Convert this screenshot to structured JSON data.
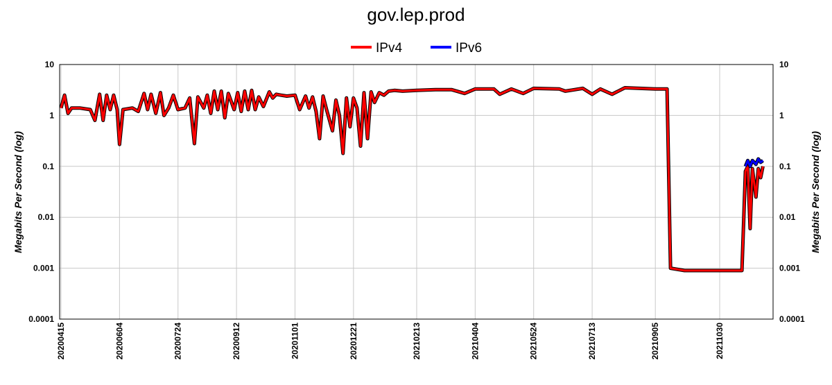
{
  "chart_data": {
    "type": "line",
    "title": "gov.lep.prod",
    "ylabel": "Megabits Per Second (log)",
    "xlabel": "",
    "yscale": "log",
    "ylim": [
      0.0001,
      10
    ],
    "yticks": [
      "10",
      "1",
      "0.1",
      "0.01",
      "0.001",
      "0.0001"
    ],
    "xticks": [
      "20200415",
      "20200604",
      "20200724",
      "20200912",
      "20201101",
      "20201221",
      "20210213",
      "20210404",
      "20210524",
      "20210713",
      "20210905",
      "20211030"
    ],
    "grid": true,
    "legend_position": "top-center",
    "series": [
      {
        "name": "IPv4",
        "color": "#ff0000",
        "points": [
          [
            "20200415",
            1.4
          ],
          [
            "20200418",
            2.5
          ],
          [
            "20200421",
            1.1
          ],
          [
            "20200424",
            1.4
          ],
          [
            "20200501",
            1.4
          ],
          [
            "20200510",
            1.3
          ],
          [
            "20200514",
            0.8
          ],
          [
            "20200518",
            2.6
          ],
          [
            "20200521",
            0.8
          ],
          [
            "20200524",
            2.5
          ],
          [
            "20200527",
            1.3
          ],
          [
            "20200530",
            2.5
          ],
          [
            "20200602",
            1.3
          ],
          [
            "20200604",
            0.27
          ],
          [
            "20200607",
            1.3
          ],
          [
            "20200615",
            1.4
          ],
          [
            "20200620",
            1.2
          ],
          [
            "20200625",
            2.7
          ],
          [
            "20200628",
            1.3
          ],
          [
            "20200701",
            2.6
          ],
          [
            "20200705",
            1.1
          ],
          [
            "20200709",
            2.8
          ],
          [
            "20200712",
            1.0
          ],
          [
            "20200716",
            1.4
          ],
          [
            "20200720",
            2.5
          ],
          [
            "20200724",
            1.3
          ],
          [
            "20200730",
            1.4
          ],
          [
            "20200803",
            2.2
          ],
          [
            "20200807",
            0.28
          ],
          [
            "20200810",
            2.3
          ],
          [
            "20200815",
            1.4
          ],
          [
            "20200818",
            2.5
          ],
          [
            "20200821",
            1.1
          ],
          [
            "20200824",
            3.0
          ],
          [
            "20200827",
            1.3
          ],
          [
            "20200830",
            3.0
          ],
          [
            "20200902",
            0.9
          ],
          [
            "20200905",
            2.7
          ],
          [
            "20200910",
            1.3
          ],
          [
            "20200913",
            2.8
          ],
          [
            "20200916",
            1.2
          ],
          [
            "20200919",
            3.0
          ],
          [
            "20200922",
            1.3
          ],
          [
            "20200925",
            3.1
          ],
          [
            "20200928",
            1.3
          ],
          [
            "20201001",
            2.3
          ],
          [
            "20201005",
            1.5
          ],
          [
            "20201010",
            2.9
          ],
          [
            "20201013",
            2.2
          ],
          [
            "20201016",
            2.6
          ],
          [
            "20201020",
            2.5
          ],
          [
            "20201025",
            2.4
          ],
          [
            "20201101",
            2.5
          ],
          [
            "20201105",
            1.3
          ],
          [
            "20201110",
            2.4
          ],
          [
            "20201113",
            1.4
          ],
          [
            "20201116",
            2.3
          ],
          [
            "20201119",
            1.2
          ],
          [
            "20201122",
            0.35
          ],
          [
            "20201125",
            2.4
          ],
          [
            "20201128",
            1.3
          ],
          [
            "20201203",
            0.5
          ],
          [
            "20201206",
            2.0
          ],
          [
            "20201209",
            1.0
          ],
          [
            "20201212",
            0.18
          ],
          [
            "20201215",
            2.2
          ],
          [
            "20201218",
            0.6
          ],
          [
            "20201221",
            2.2
          ],
          [
            "20201224",
            1.4
          ],
          [
            "20201227",
            0.25
          ],
          [
            "20201230",
            2.8
          ],
          [
            "20210102",
            0.35
          ],
          [
            "20210105",
            2.9
          ],
          [
            "20210108",
            1.8
          ],
          [
            "20210112",
            2.8
          ],
          [
            "20210116",
            2.5
          ],
          [
            "20210120",
            3.0
          ],
          [
            "20210125",
            3.1
          ],
          [
            "20210201",
            3.0
          ],
          [
            "20210213",
            3.1
          ],
          [
            "20210301",
            3.2
          ],
          [
            "20210315",
            3.2
          ],
          [
            "20210326",
            2.7
          ],
          [
            "20210404",
            3.3
          ],
          [
            "20210420",
            3.3
          ],
          [
            "20210425",
            2.6
          ],
          [
            "20210505",
            3.3
          ],
          [
            "20210515",
            2.7
          ],
          [
            "20210524",
            3.4
          ],
          [
            "20210615",
            3.3
          ],
          [
            "20210620",
            3.0
          ],
          [
            "20210705",
            3.4
          ],
          [
            "20210713",
            2.6
          ],
          [
            "20210720",
            3.3
          ],
          [
            "20210730",
            2.6
          ],
          [
            "20210810",
            3.5
          ],
          [
            "20210905",
            3.3
          ],
          [
            "20210915",
            3.3
          ],
          [
            "20210918",
            0.001
          ],
          [
            "20210930",
            0.0009
          ],
          [
            "20211010",
            0.0009
          ],
          [
            "20211020",
            0.0009
          ],
          [
            "20211030",
            0.0009
          ],
          [
            "20211118",
            0.0009
          ],
          [
            "20211121",
            0.08
          ],
          [
            "20211123",
            0.1
          ],
          [
            "20211125",
            0.006
          ],
          [
            "20211127",
            0.09
          ],
          [
            "20211130",
            0.025
          ],
          [
            "20211202",
            0.09
          ],
          [
            "20211204",
            0.06
          ],
          [
            "20211206",
            0.1
          ]
        ]
      },
      {
        "name": "IPv6",
        "color": "#0000ff",
        "points": [
          [
            "20211121",
            0.1
          ],
          [
            "20211123",
            0.13
          ],
          [
            "20211125",
            0.1
          ],
          [
            "20211127",
            0.13
          ],
          [
            "20211130",
            0.11
          ],
          [
            "20211202",
            0.14
          ],
          [
            "20211204",
            0.12
          ],
          [
            "20211206",
            0.13
          ]
        ]
      }
    ]
  }
}
